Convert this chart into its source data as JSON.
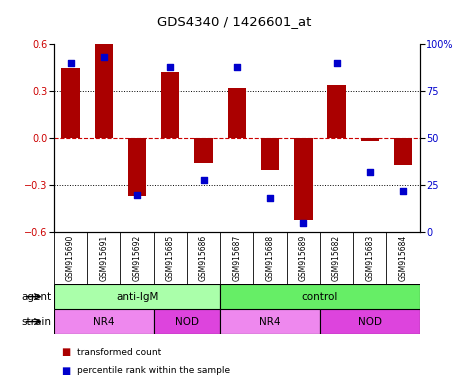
{
  "title": "GDS4340 / 1426601_at",
  "samples": [
    "GSM915690",
    "GSM915691",
    "GSM915692",
    "GSM915685",
    "GSM915686",
    "GSM915687",
    "GSM915688",
    "GSM915689",
    "GSM915682",
    "GSM915683",
    "GSM915684"
  ],
  "transformed_count": [
    0.45,
    0.6,
    -0.37,
    0.42,
    -0.16,
    0.32,
    -0.2,
    -0.52,
    0.34,
    -0.02,
    -0.17
  ],
  "percentile_rank": [
    90,
    93,
    20,
    88,
    28,
    88,
    18,
    5,
    90,
    32,
    22
  ],
  "ylim_left": [
    -0.6,
    0.6
  ],
  "ylim_right": [
    0,
    100
  ],
  "yticks_left": [
    -0.6,
    -0.3,
    0,
    0.3,
    0.6
  ],
  "yticks_right": [
    0,
    25,
    50,
    75,
    100
  ],
  "ytick_labels_right": [
    "0",
    "25",
    "50",
    "75",
    "100%"
  ],
  "bar_color": "#aa0000",
  "dot_color": "#0000cc",
  "gridline_y": [
    0.3,
    0.0,
    -0.3
  ],
  "agent_groups": [
    {
      "label": "anti-IgM",
      "start": 0,
      "end": 5,
      "color": "#aaffaa"
    },
    {
      "label": "control",
      "start": 5,
      "end": 11,
      "color": "#66ee66"
    }
  ],
  "strain_groups": [
    {
      "label": "NR4",
      "start": 0,
      "end": 3,
      "color": "#ee88ee"
    },
    {
      "label": "NOD",
      "start": 3,
      "end": 5,
      "color": "#dd44dd"
    },
    {
      "label": "NR4",
      "start": 5,
      "end": 8,
      "color": "#ee88ee"
    },
    {
      "label": "NOD",
      "start": 8,
      "end": 11,
      "color": "#dd44dd"
    }
  ],
  "agent_label": "agent",
  "strain_label": "strain",
  "legend_items": [
    {
      "color": "#aa0000",
      "label": "transformed count"
    },
    {
      "color": "#0000cc",
      "label": "percentile rank within the sample"
    }
  ],
  "background_color": "#ffffff",
  "plot_bg_color": "#ffffff",
  "zero_line_color": "#cc0000",
  "grid_color": "#000000",
  "sample_box_color": "#cccccc"
}
